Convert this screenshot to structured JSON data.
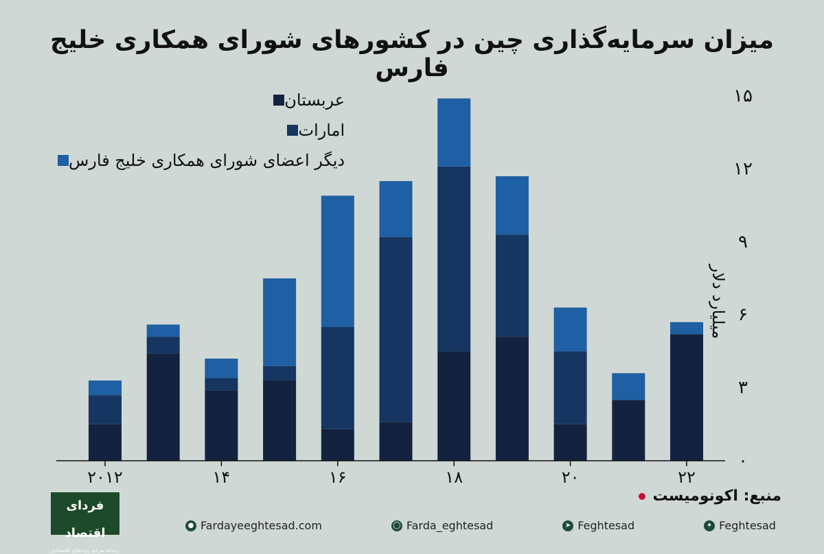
{
  "header": {
    "title": "میزان سرمایه‌گذاری چین در کشورهای شورای همکاری خلیج فارس"
  },
  "chart_data": {
    "type": "bar",
    "stacked": true,
    "title": "میزان سرمایه‌گذاری چین در کشورهای شورای همکاری خلیج فارس",
    "xlabel": "",
    "ylabel": "میلیارد دلار",
    "x": [
      2012,
      2013,
      2014,
      2015,
      2016,
      2017,
      2018,
      2019,
      2020,
      2021,
      2022
    ],
    "x_tick_labels": [
      "۲۰۱۲",
      "۱۴",
      "۱۶",
      "۱۸",
      "۲۰",
      "۲۲"
    ],
    "x_tick_positions": [
      2012,
      2014,
      2016,
      2018,
      2020,
      2022
    ],
    "y_ticks": [
      0,
      3,
      6,
      9,
      12,
      15
    ],
    "y_tick_labels": [
      "۰",
      "۳",
      "۶",
      "۹",
      "۱۲",
      "۱۵"
    ],
    "ylim": [
      0,
      15
    ],
    "grid": false,
    "legend_position": "top-left",
    "series": [
      {
        "name": "عربستان",
        "color": "#13233f",
        "values": [
          1.5,
          4.4,
          2.9,
          3.3,
          1.3,
          1.6,
          4.5,
          5.1,
          1.5,
          2.5,
          5.2
        ]
      },
      {
        "name": "امارات",
        "color": "#163661",
        "values": [
          1.2,
          0.7,
          0.5,
          0.6,
          4.2,
          7.6,
          7.6,
          4.2,
          3.0,
          0.0,
          0.0
        ]
      },
      {
        "name": "دیگر اعضای شورای همکاری خلیج فارس",
        "color": "#1f5fa3",
        "values": [
          0.6,
          0.5,
          0.8,
          3.6,
          5.4,
          2.3,
          2.8,
          2.4,
          1.8,
          1.1,
          0.5
        ]
      }
    ]
  },
  "source": {
    "text": "منبع: اکونومیست"
  },
  "logo": {
    "text": "فردای اقتصاد",
    "subtext": "رسانه مرجع روندهای اقتصادی"
  },
  "footer": {
    "website": "Fardayeeghtesad.com",
    "instagram": "Farda_eghtesad",
    "telegram": "Feghtesad",
    "twitter": "Feghtesad"
  }
}
